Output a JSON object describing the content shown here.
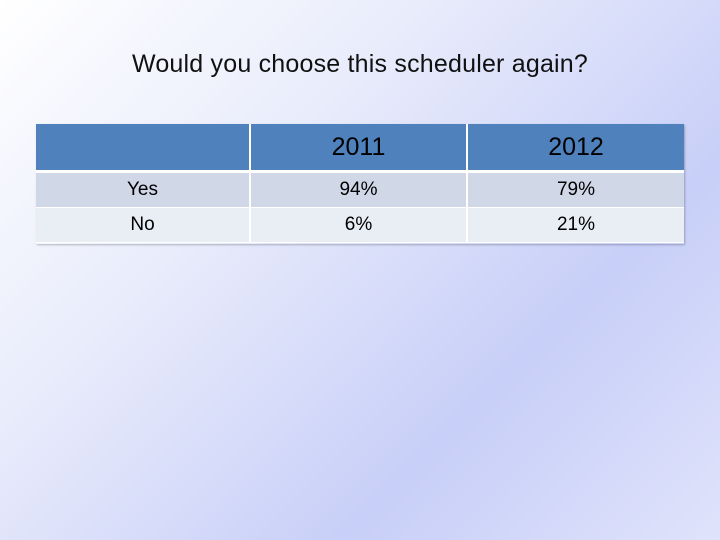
{
  "title": "Would you choose this scheduler again?",
  "colors": {
    "header_fill": "#4f81bd",
    "row_band_1": "#d0d8e8",
    "row_band_2": "#e9edf4"
  },
  "chart_data": {
    "type": "table",
    "title": "Would you choose this scheduler again?",
    "columns": [
      "",
      "2011",
      "2012"
    ],
    "rows": [
      {
        "label": "Yes",
        "values": [
          "94%",
          "79%"
        ]
      },
      {
        "label": "No",
        "values": [
          "6%",
          "21%"
        ]
      }
    ]
  }
}
